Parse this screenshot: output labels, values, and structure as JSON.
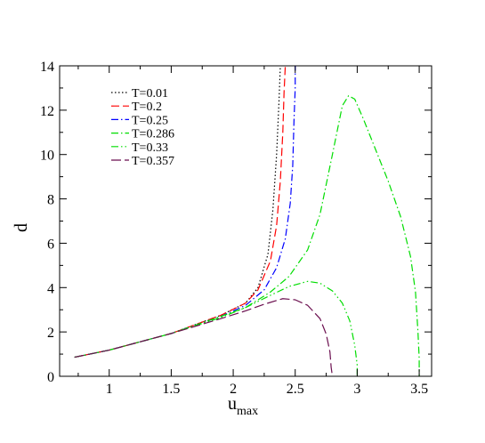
{
  "chart_data": {
    "type": "line",
    "title": "",
    "xlabel": "u",
    "xlabel_sub": "max",
    "ylabel": "d",
    "xlim": [
      0.6,
      3.6
    ],
    "ylim": [
      0,
      14
    ],
    "x_ticks": [
      1,
      1.5,
      2,
      2.5,
      3,
      3.5
    ],
    "x_tick_labels": [
      "1",
      "1.5",
      "2",
      "2.5",
      "3",
      "3.5"
    ],
    "y_ticks": [
      0,
      2,
      4,
      6,
      8,
      10,
      12,
      14
    ],
    "y_tick_labels": [
      "0",
      "2",
      "4",
      "6",
      "8",
      "10",
      "12",
      "14"
    ],
    "grid": false,
    "legend_position": "top-left",
    "series": [
      {
        "name": "T=0.01",
        "color": "#000000",
        "dash": "1.5,2.5",
        "points": [
          [
            0.72,
            0.86
          ],
          [
            1.0,
            1.18
          ],
          [
            1.5,
            1.93
          ],
          [
            1.9,
            2.75
          ],
          [
            2.1,
            3.3
          ],
          [
            2.2,
            4.0
          ],
          [
            2.28,
            5.5
          ],
          [
            2.32,
            7.5
          ],
          [
            2.35,
            10.0
          ],
          [
            2.37,
            12.5
          ],
          [
            2.38,
            14.0
          ]
        ]
      },
      {
        "name": "T=0.2",
        "color": "#ff0000",
        "dash": "9,4",
        "points": [
          [
            0.72,
            0.86
          ],
          [
            1.0,
            1.18
          ],
          [
            1.5,
            1.93
          ],
          [
            1.9,
            2.75
          ],
          [
            2.1,
            3.3
          ],
          [
            2.2,
            3.9
          ],
          [
            2.3,
            5.2
          ],
          [
            2.35,
            6.8
          ],
          [
            2.38,
            8.8
          ],
          [
            2.4,
            11.0
          ],
          [
            2.41,
            12.8
          ],
          [
            2.42,
            14.0
          ]
        ]
      },
      {
        "name": "T=0.25",
        "color": "#0000ff",
        "dash": "8,3,1.5,3",
        "points": [
          [
            0.72,
            0.86
          ],
          [
            1.0,
            1.18
          ],
          [
            1.5,
            1.93
          ],
          [
            1.9,
            2.7
          ],
          [
            2.1,
            3.2
          ],
          [
            2.25,
            3.9
          ],
          [
            2.35,
            4.9
          ],
          [
            2.42,
            6.2
          ],
          [
            2.46,
            7.8
          ],
          [
            2.48,
            9.5
          ],
          [
            2.49,
            11.5
          ],
          [
            2.5,
            13.0
          ],
          [
            2.5,
            14.0
          ]
        ]
      },
      {
        "name": "T=0.286",
        "color": "#00dd00",
        "dash": "8,3,1.5,3",
        "points": [
          [
            0.72,
            0.86
          ],
          [
            1.0,
            1.18
          ],
          [
            1.5,
            1.93
          ],
          [
            1.9,
            2.7
          ],
          [
            2.1,
            3.1
          ],
          [
            2.3,
            3.8
          ],
          [
            2.45,
            4.5
          ],
          [
            2.6,
            5.7
          ],
          [
            2.7,
            7.3
          ],
          [
            2.8,
            10.0
          ],
          [
            2.88,
            12.2
          ],
          [
            2.93,
            12.65
          ],
          [
            2.98,
            12.5
          ],
          [
            3.05,
            11.6
          ],
          [
            3.15,
            10.2
          ],
          [
            3.25,
            8.8
          ],
          [
            3.35,
            7.2
          ],
          [
            3.43,
            5.4
          ],
          [
            3.47,
            3.8
          ],
          [
            3.49,
            2.0
          ],
          [
            3.5,
            0.8
          ],
          [
            3.5,
            0.0
          ]
        ]
      },
      {
        "name": "T=0.33",
        "color": "#00dd00",
        "dash": "8,3,1.5,3,1.5,3",
        "points": [
          [
            0.72,
            0.86
          ],
          [
            1.0,
            1.18
          ],
          [
            1.5,
            1.93
          ],
          [
            1.9,
            2.65
          ],
          [
            2.1,
            3.1
          ],
          [
            2.3,
            3.65
          ],
          [
            2.45,
            4.05
          ],
          [
            2.6,
            4.28
          ],
          [
            2.7,
            4.2
          ],
          [
            2.8,
            3.85
          ],
          [
            2.88,
            3.3
          ],
          [
            2.94,
            2.5
          ],
          [
            2.98,
            1.4
          ],
          [
            3.0,
            0.5
          ],
          [
            3.0,
            0.0
          ]
        ]
      },
      {
        "name": "T=0.357",
        "color": "#6b0f4f",
        "dash": "11,4",
        "points": [
          [
            0.72,
            0.86
          ],
          [
            1.0,
            1.18
          ],
          [
            1.5,
            1.93
          ],
          [
            1.9,
            2.6
          ],
          [
            2.1,
            2.95
          ],
          [
            2.25,
            3.25
          ],
          [
            2.4,
            3.5
          ],
          [
            2.5,
            3.45
          ],
          [
            2.6,
            3.2
          ],
          [
            2.7,
            2.6
          ],
          [
            2.75,
            1.9
          ],
          [
            2.78,
            1.1
          ],
          [
            2.79,
            0.4
          ],
          [
            2.8,
            0.0
          ]
        ]
      }
    ]
  }
}
